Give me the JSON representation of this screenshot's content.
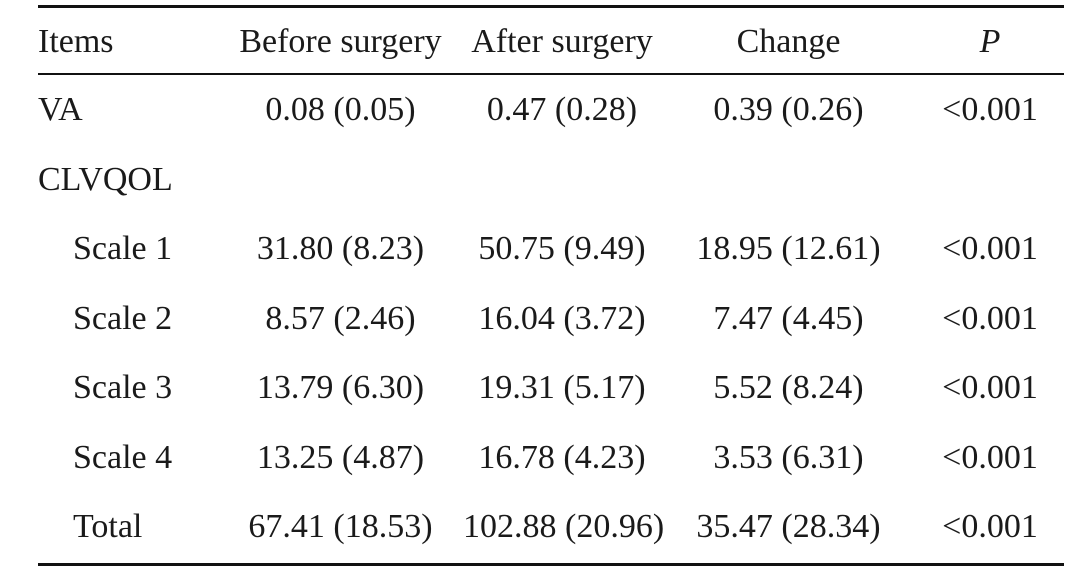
{
  "table": {
    "headers": {
      "items": "Items",
      "before": "Before surgery",
      "after": "After surgery",
      "change": "Change",
      "p": "P"
    },
    "rows": [
      {
        "label": "VA",
        "before": "0.08 (0.05)",
        "after": "0.47 (0.28)",
        "change": "0.39 (0.26)",
        "p": "<0.001"
      },
      {
        "label": "CLVQOL",
        "before": "",
        "after": "",
        "change": "",
        "p": ""
      },
      {
        "label": "Scale 1",
        "before": "31.80 (8.23)",
        "after": "50.75 (9.49)",
        "change": "18.95 (12.61)",
        "p": "<0.001"
      },
      {
        "label": "Scale 2",
        "before": "8.57 (2.46)",
        "after": "16.04 (3.72)",
        "change": "7.47 (4.45)",
        "p": "<0.001"
      },
      {
        "label": "Scale 3",
        "before": "13.79 (6.30)",
        "after": "19.31 (5.17)",
        "change": "5.52 (8.24)",
        "p": "<0.001"
      },
      {
        "label": "Scale 4",
        "before": "13.25 (4.87)",
        "after": "16.78 (4.23)",
        "change": "3.53 (6.31)",
        "p": "<0.001"
      },
      {
        "label": "Total",
        "before": "67.41 (18.53)",
        "after": "102.88 (20.96)",
        "change": "35.47 (28.34)",
        "p": "<0.001"
      }
    ]
  }
}
